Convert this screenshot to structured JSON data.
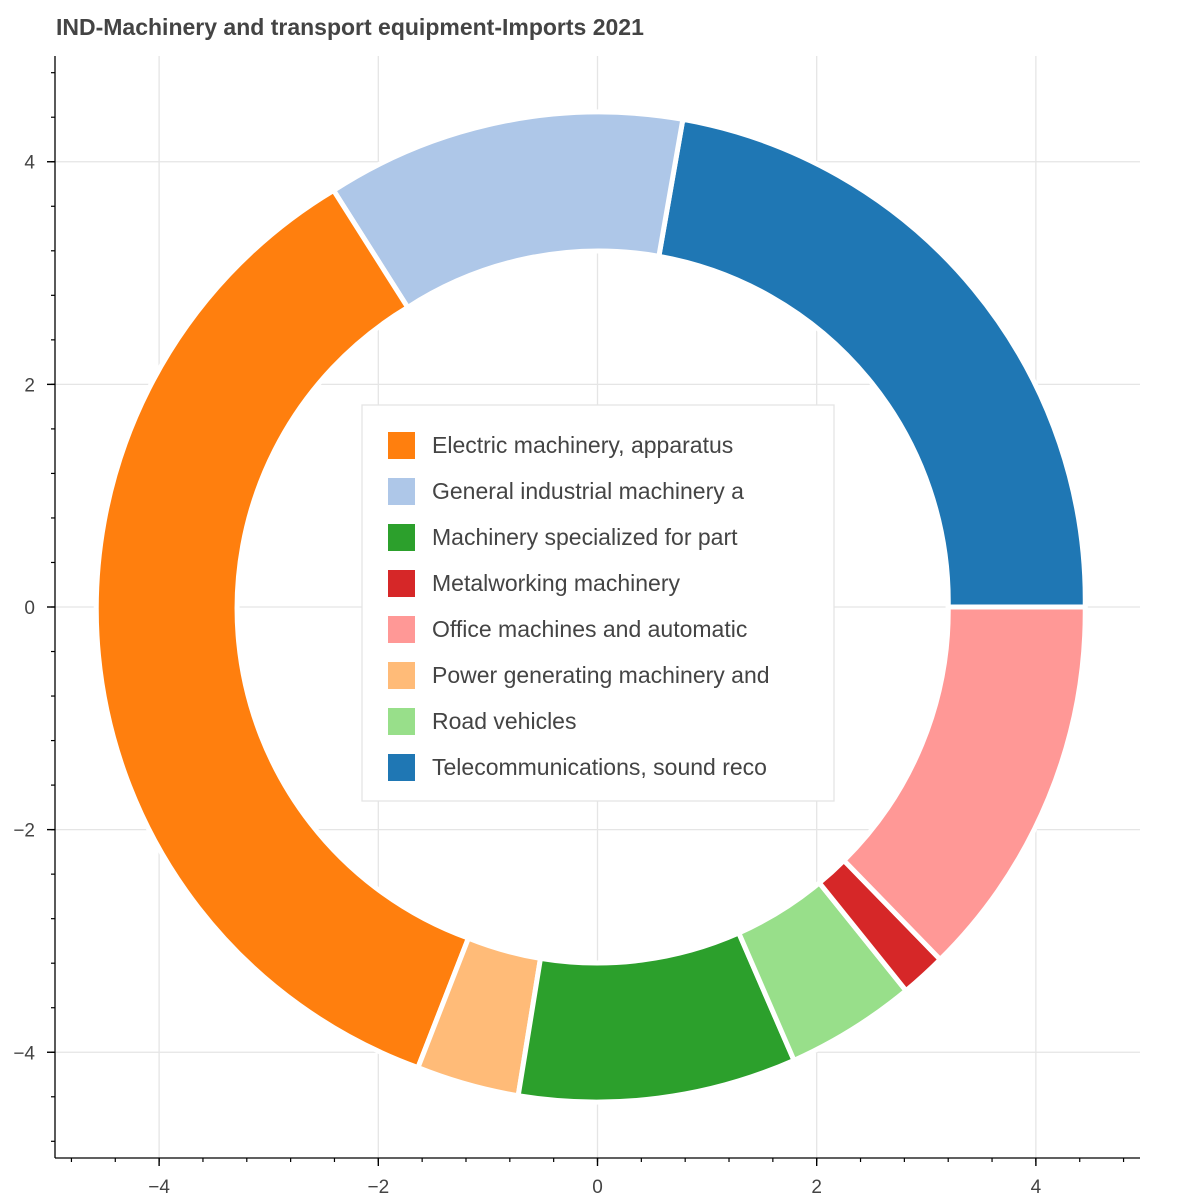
{
  "chart_data": {
    "type": "pie",
    "title": "IND-Machinery and transport equipment-Imports 2021",
    "xlabel": "",
    "ylabel": "",
    "xlim": [
      -4.95,
      4.95
    ],
    "ylim": [
      -4.95,
      4.95
    ],
    "x_ticks": [
      "−4",
      "−2",
      "0",
      "2",
      "4"
    ],
    "y_ticks": [
      "4",
      "2",
      "0",
      "−2",
      "−4"
    ],
    "grid": true,
    "legend_position": "center",
    "inner_radius": 3.2,
    "outer_radius": 4.45,
    "start_angle_deg": 0,
    "direction": "counterclockwise",
    "slices": [
      {
        "name": "Telecommunications, sound reco",
        "value": 22.2,
        "color": "#1f77b4"
      },
      {
        "name": "General industrial machinery a",
        "value": 11.9,
        "color": "#aec7e8"
      },
      {
        "name": "Electric machinery, apparatus",
        "value": 34.9,
        "color": "#ff7f0e"
      },
      {
        "name": "Power generating machinery and",
        "value": 3.4,
        "color": "#ffbb78"
      },
      {
        "name": "Machinery specialized for part",
        "value": 9.2,
        "color": "#2ca02c"
      },
      {
        "name": "Road vehicles",
        "value": 4.3,
        "color": "#98df8a"
      },
      {
        "name": "Metalworking machinery",
        "value": 1.5,
        "color": "#d62728"
      },
      {
        "name": "Office machines and automatic",
        "value": 12.6,
        "color": "#ff9896"
      }
    ],
    "legend": [
      {
        "label": "Electric machinery, apparatus",
        "color": "#ff7f0e"
      },
      {
        "label": "General industrial machinery a",
        "color": "#aec7e8"
      },
      {
        "label": "Machinery specialized for part",
        "color": "#2ca02c"
      },
      {
        "label": "Metalworking machinery",
        "color": "#d62728"
      },
      {
        "label": "Office machines and automatic",
        "color": "#ff9896"
      },
      {
        "label": "Power generating machinery and",
        "color": "#ffbb78"
      },
      {
        "label": "Road vehicles",
        "color": "#98df8a"
      },
      {
        "label": "Telecommunications, sound reco",
        "color": "#1f77b4"
      }
    ]
  }
}
